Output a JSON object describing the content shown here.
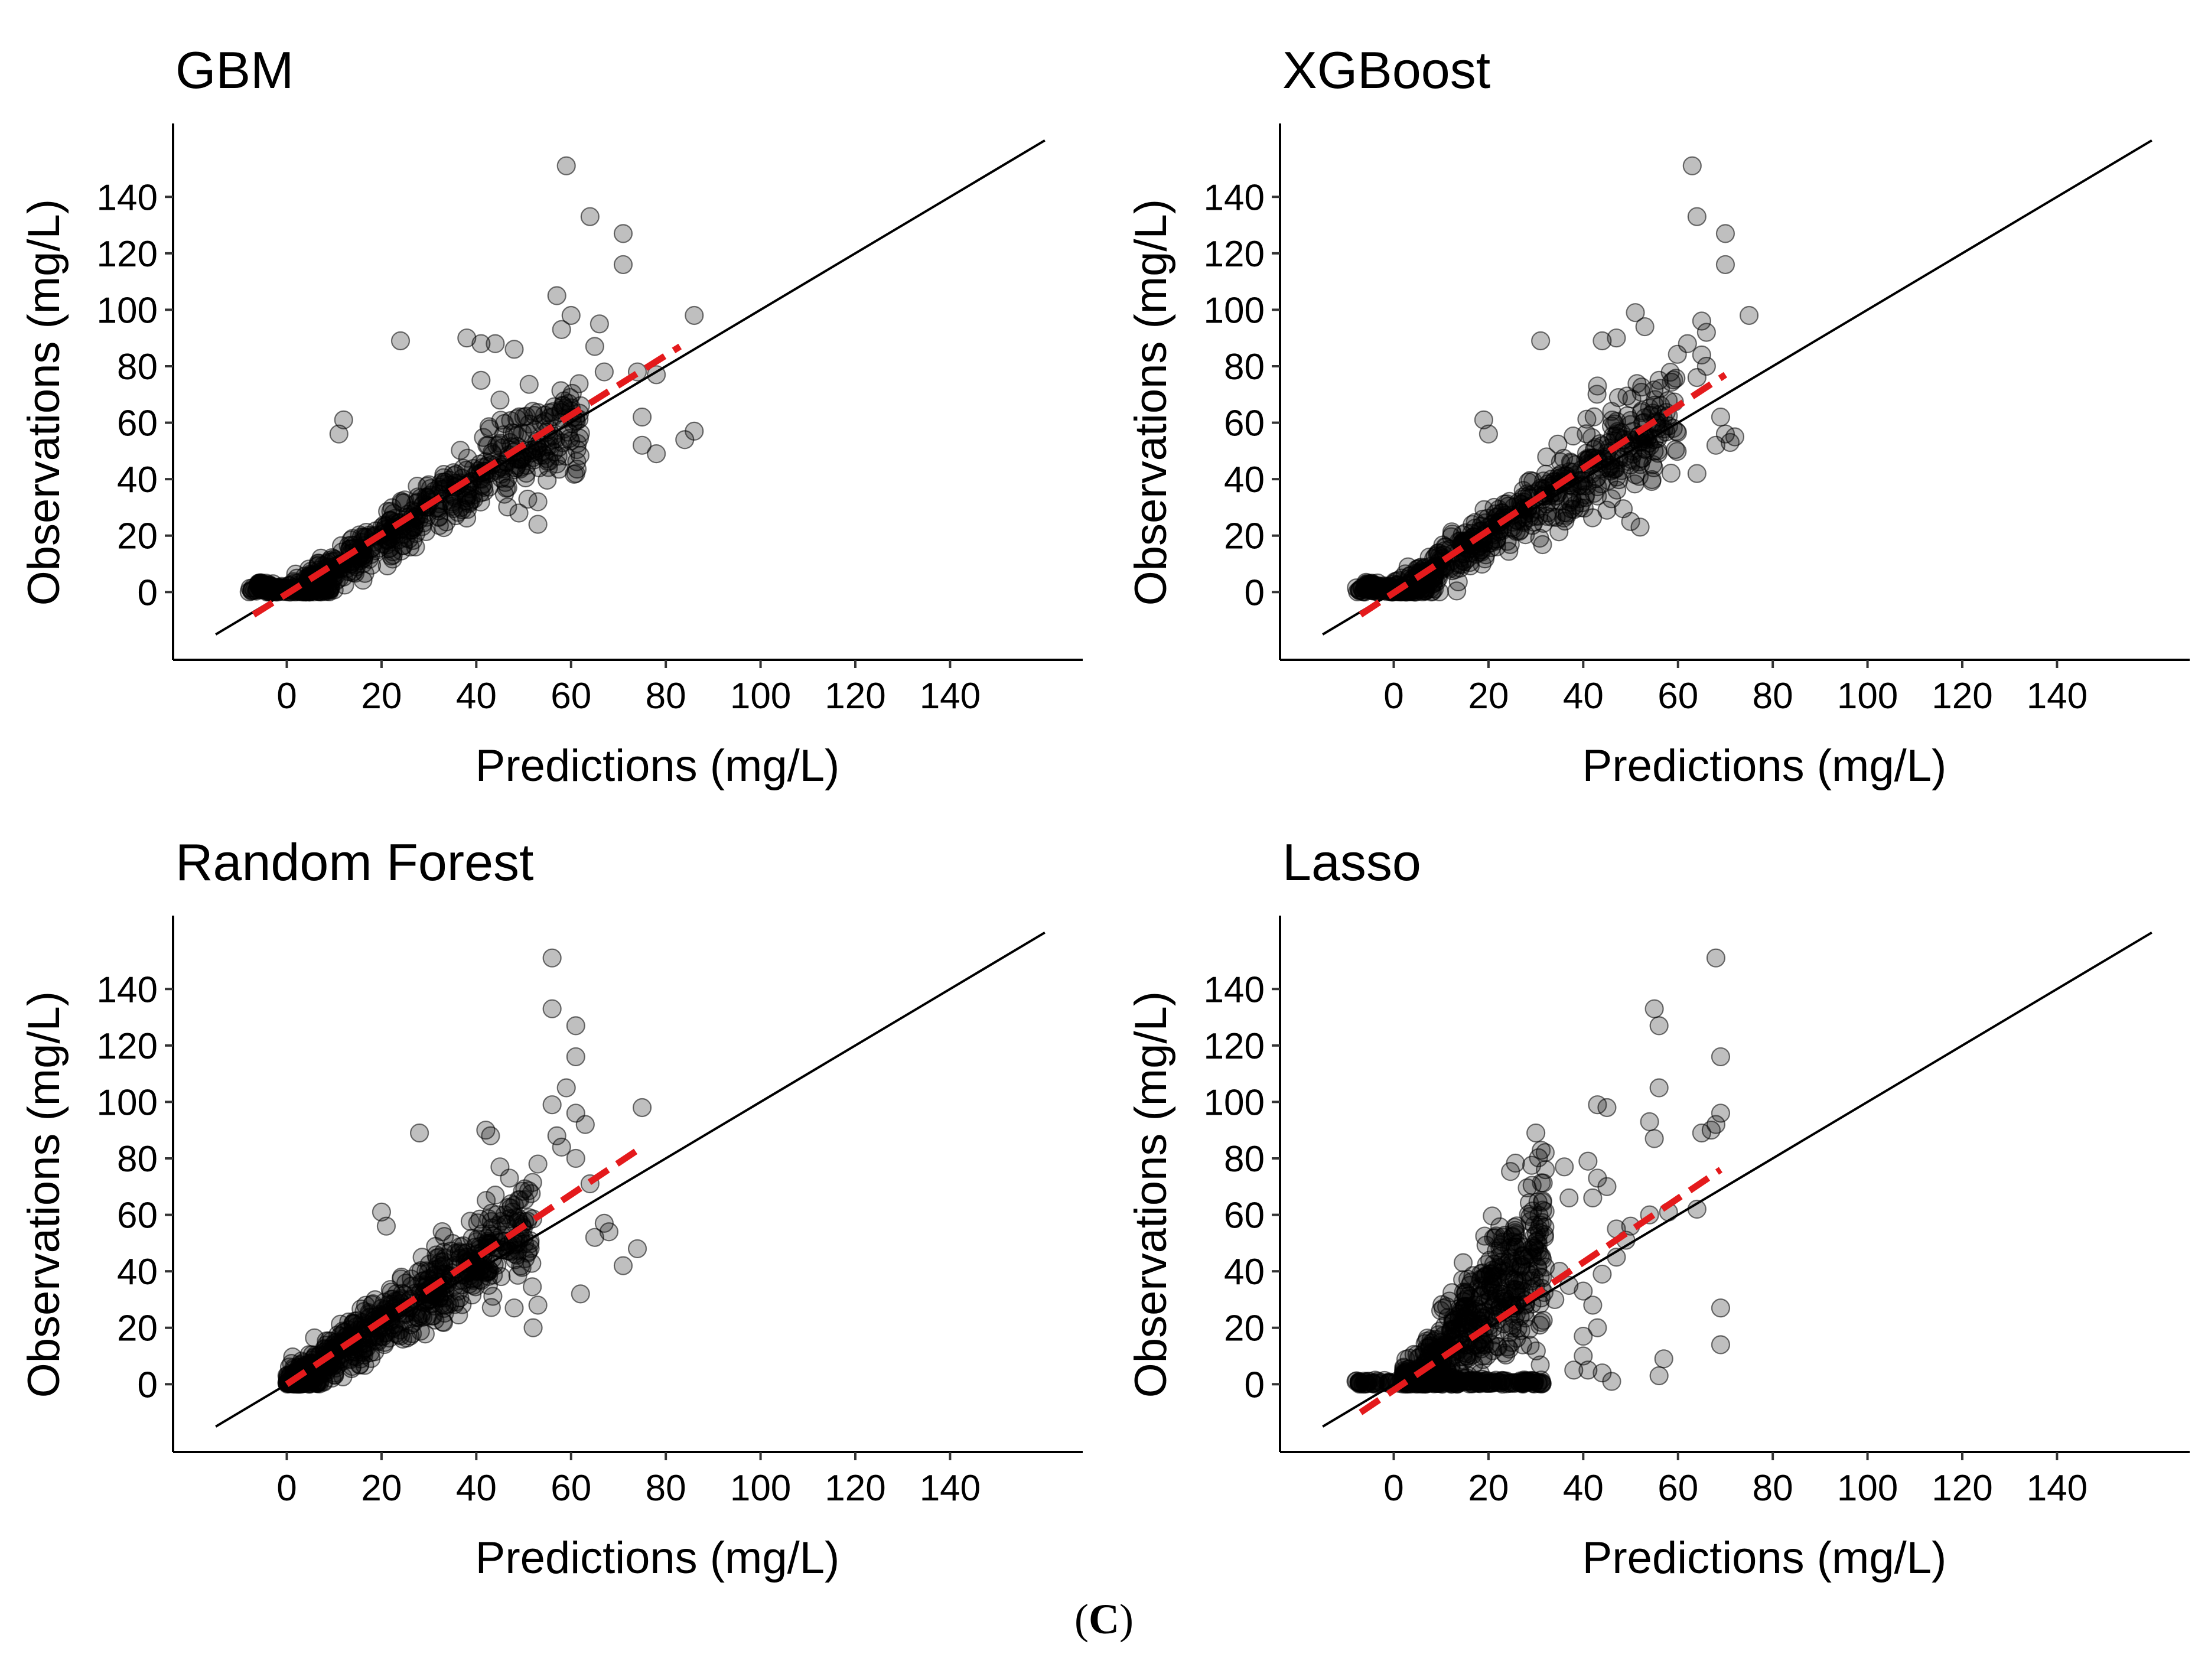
{
  "figure": {
    "caption_open": "(",
    "caption_label": "C",
    "caption_close": ")"
  },
  "chart_data": [
    {
      "type": "scatter",
      "title": "GBM",
      "xlabel": "Predictions (mg/L)",
      "ylabel": "Observations (mg/L)",
      "xlim": [
        -24,
        168
      ],
      "ylim": [
        -24,
        166
      ],
      "xticks": [
        0,
        20,
        40,
        60,
        80,
        100,
        120,
        140
      ],
      "yticks": [
        0,
        20,
        40,
        60,
        80,
        100,
        120,
        140
      ],
      "identity_line": {
        "from": -15,
        "to": 160,
        "color": "#000000"
      },
      "fit_line": {
        "x": [
          -7,
          83
        ],
        "y": [
          -8,
          87
        ],
        "color": "#e41a1c",
        "style": "dashed"
      },
      "point_color": "#000000",
      "seed": 11,
      "bulk": {
        "n": 650,
        "xmin": -6,
        "xmax": 62,
        "slope": 1.03,
        "intercept": -1.5,
        "noise": 6.5
      },
      "low_cluster": {
        "n": 70,
        "xmin": -8,
        "xmax": 10,
        "y": 0
      },
      "outliers": [
        [
          59,
          151
        ],
        [
          64,
          133
        ],
        [
          71,
          127
        ],
        [
          71,
          116
        ],
        [
          57,
          105
        ],
        [
          60,
          98
        ],
        [
          66,
          95
        ],
        [
          58,
          93
        ],
        [
          41,
          88
        ],
        [
          44,
          88
        ],
        [
          24,
          89
        ],
        [
          65,
          87
        ],
        [
          38,
          90
        ],
        [
          48,
          86
        ],
        [
          74,
          78
        ],
        [
          78,
          77
        ],
        [
          67,
          78
        ],
        [
          62,
          66
        ],
        [
          75,
          62
        ],
        [
          86,
          98
        ],
        [
          86,
          57
        ],
        [
          75,
          52
        ],
        [
          78,
          49
        ],
        [
          84,
          54
        ],
        [
          61,
          42
        ],
        [
          53,
          24
        ],
        [
          49,
          28
        ],
        [
          53,
          32
        ],
        [
          12,
          61
        ],
        [
          11,
          56
        ],
        [
          41,
          75
        ],
        [
          45,
          68
        ],
        [
          50,
          62
        ]
      ]
    },
    {
      "type": "scatter",
      "title": "XGBoost",
      "xlabel": "Predictions (mg/L)",
      "ylabel": "Observations (mg/L)",
      "xlim": [
        -24,
        168
      ],
      "ylim": [
        -24,
        166
      ],
      "xticks": [
        0,
        20,
        40,
        60,
        80,
        100,
        120,
        140
      ],
      "yticks": [
        0,
        20,
        40,
        60,
        80,
        100,
        120,
        140
      ],
      "identity_line": {
        "from": -15,
        "to": 160,
        "color": "#000000"
      },
      "fit_line": {
        "x": [
          -7,
          70
        ],
        "y": [
          -8,
          77
        ],
        "color": "#e41a1c",
        "style": "dashed"
      },
      "point_color": "#000000",
      "seed": 23,
      "bulk": {
        "n": 650,
        "xmin": -6,
        "xmax": 60,
        "slope": 1.08,
        "intercept": -1.0,
        "noise": 6.5
      },
      "low_cluster": {
        "n": 70,
        "xmin": -8,
        "xmax": 10,
        "y": 0
      },
      "outliers": [
        [
          63,
          151
        ],
        [
          64,
          133
        ],
        [
          70,
          127
        ],
        [
          70,
          116
        ],
        [
          51,
          99
        ],
        [
          53,
          94
        ],
        [
          65,
          96
        ],
        [
          66,
          92
        ],
        [
          62,
          88
        ],
        [
          44,
          89
        ],
        [
          47,
          90
        ],
        [
          31,
          89
        ],
        [
          65,
          84
        ],
        [
          66,
          80
        ],
        [
          56,
          75
        ],
        [
          64,
          76
        ],
        [
          69,
          62
        ],
        [
          43,
          73
        ],
        [
          70,
          56
        ],
        [
          71,
          53
        ],
        [
          72,
          55
        ],
        [
          68,
          52
        ],
        [
          64,
          42
        ],
        [
          59,
          58
        ],
        [
          55,
          54
        ],
        [
          52,
          23
        ],
        [
          50,
          25
        ],
        [
          45,
          29
        ],
        [
          75,
          98
        ],
        [
          19,
          61
        ],
        [
          20,
          56
        ],
        [
          46,
          64
        ]
      ]
    },
    {
      "type": "scatter",
      "title": "Random Forest",
      "xlabel": "Predictions (mg/L)",
      "ylabel": "Observations (mg/L)",
      "xlim": [
        -24,
        168
      ],
      "ylim": [
        -24,
        166
      ],
      "xticks": [
        0,
        20,
        40,
        60,
        80,
        100,
        120,
        140
      ],
      "yticks": [
        0,
        20,
        40,
        60,
        80,
        100,
        120,
        140
      ],
      "identity_line": {
        "from": -15,
        "to": 160,
        "color": "#000000"
      },
      "fit_line": {
        "x": [
          0,
          75
        ],
        "y": [
          0,
          84
        ],
        "color": "#e41a1c",
        "style": "dashed"
      },
      "point_color": "#000000",
      "seed": 37,
      "bulk": {
        "n": 650,
        "xmin": 0,
        "xmax": 52,
        "slope": 1.08,
        "intercept": 0.0,
        "noise": 6.5
      },
      "low_cluster": {
        "n": 40,
        "xmin": 0,
        "xmax": 8,
        "y": 0
      },
      "outliers": [
        [
          56,
          151
        ],
        [
          56,
          133
        ],
        [
          61,
          127
        ],
        [
          61,
          116
        ],
        [
          59,
          105
        ],
        [
          56,
          99
        ],
        [
          61,
          96
        ],
        [
          63,
          92
        ],
        [
          42,
          90
        ],
        [
          43,
          88
        ],
        [
          28,
          89
        ],
        [
          57,
          88
        ],
        [
          58,
          84
        ],
        [
          61,
          80
        ],
        [
          53,
          78
        ],
        [
          45,
          77
        ],
        [
          64,
          71
        ],
        [
          47,
          73
        ],
        [
          67,
          57
        ],
        [
          68,
          54
        ],
        [
          65,
          52
        ],
        [
          71,
          42
        ],
        [
          74,
          48
        ],
        [
          75,
          98
        ],
        [
          62,
          32
        ],
        [
          52,
          20
        ],
        [
          48,
          27
        ],
        [
          53,
          28
        ],
        [
          20,
          61
        ],
        [
          21,
          56
        ],
        [
          44,
          67
        ],
        [
          46,
          60
        ]
      ]
    },
    {
      "type": "scatter",
      "title": "Lasso",
      "xlabel": "Predictions (mg/L)",
      "ylabel": "Observations (mg/L)",
      "xlim": [
        -24,
        168
      ],
      "ylim": [
        -24,
        166
      ],
      "xticks": [
        0,
        20,
        40,
        60,
        80,
        100,
        120,
        140
      ],
      "yticks": [
        0,
        20,
        40,
        60,
        80,
        100,
        120,
        140
      ],
      "identity_line": {
        "from": -15,
        "to": 160,
        "color": "#000000"
      },
      "fit_line": {
        "x": [
          -7,
          69
        ],
        "y": [
          -10,
          76
        ],
        "color": "#e41a1c",
        "style": "dashed"
      },
      "point_color": "#000000",
      "seed": 53,
      "bulk": {
        "n": 620,
        "xmin": 2,
        "xmax": 32,
        "slope": 1.9,
        "intercept": -10.0,
        "noise": 12
      },
      "low_cluster": {
        "n": 160,
        "xmin": -8,
        "xmax": 32,
        "y": 0
      },
      "outliers": [
        [
          68,
          151
        ],
        [
          55,
          133
        ],
        [
          56,
          127
        ],
        [
          69,
          116
        ],
        [
          56,
          105
        ],
        [
          43,
          99
        ],
        [
          45,
          98
        ],
        [
          54,
          93
        ],
        [
          55,
          87
        ],
        [
          65,
          89
        ],
        [
          68,
          92
        ],
        [
          69,
          96
        ],
        [
          67,
          90
        ],
        [
          30,
          89
        ],
        [
          32,
          76
        ],
        [
          36,
          77
        ],
        [
          37,
          66
        ],
        [
          41,
          79
        ],
        [
          43,
          73
        ],
        [
          45,
          70
        ],
        [
          42,
          66
        ],
        [
          50,
          56
        ],
        [
          49,
          51
        ],
        [
          47,
          45
        ],
        [
          44,
          39
        ],
        [
          40,
          33
        ],
        [
          35,
          40
        ],
        [
          42,
          28
        ],
        [
          43,
          20
        ],
        [
          40,
          17
        ],
        [
          41,
          5
        ],
        [
          44,
          4
        ],
        [
          46,
          1
        ],
        [
          57,
          9
        ],
        [
          56,
          3
        ],
        [
          69,
          27
        ],
        [
          69,
          14
        ],
        [
          64,
          62
        ],
        [
          58,
          61
        ],
        [
          54,
          60
        ],
        [
          47,
          55
        ],
        [
          37,
          35
        ],
        [
          34,
          30
        ],
        [
          40,
          10
        ],
        [
          38,
          5
        ]
      ]
    }
  ]
}
